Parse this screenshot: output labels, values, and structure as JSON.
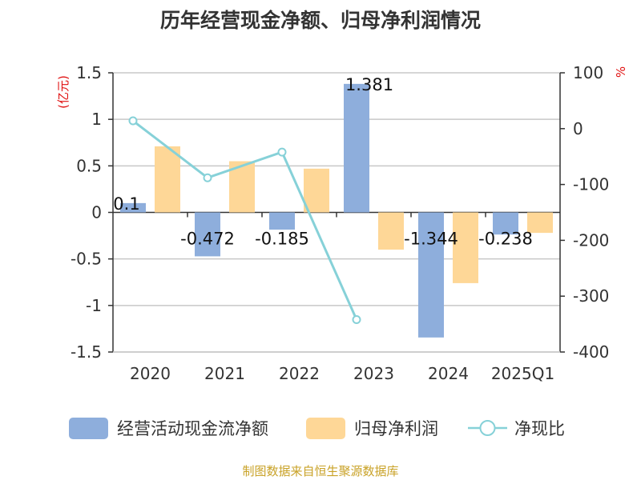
{
  "chart_data": {
    "type": "bar",
    "title": "历年经营现金净额、归母净利润情况",
    "categories": [
      "2020",
      "2021",
      "2022",
      "2023",
      "2024",
      "2025Q1"
    ],
    "left_axis": {
      "unit": "(亿元)",
      "ylim": [
        -1.5,
        1.5
      ],
      "ticks": [
        1.5,
        1,
        0.5,
        0,
        -0.5,
        -1,
        -1.5
      ]
    },
    "right_axis": {
      "unit": "%",
      "ylim": [
        -400,
        100
      ],
      "ticks": [
        100,
        0,
        -100,
        -200,
        -300,
        -400
      ]
    },
    "series": [
      {
        "name": "经营活动现金流净额",
        "type": "bar",
        "axis": "left",
        "color": "#8eaedc",
        "values": [
          0.1,
          -0.472,
          -0.185,
          1.381,
          -1.344,
          -0.238
        ],
        "labels": [
          "0.1",
          "-0.472",
          "-0.185",
          "1.381",
          "-1.344",
          "-0.238"
        ]
      },
      {
        "name": "归母净利润",
        "type": "bar",
        "axis": "left",
        "color": "#fed797",
        "values": [
          0.71,
          0.55,
          0.47,
          -0.4,
          -0.76,
          -0.22
        ]
      },
      {
        "name": "净现比",
        "type": "line",
        "axis": "right",
        "color": "#86d1d8",
        "values": [
          14,
          -88,
          -42,
          -342,
          null,
          null
        ]
      }
    ],
    "grid": true,
    "legend_position": "bottom"
  },
  "source_note": "制图数据来自恒生聚源数据库"
}
